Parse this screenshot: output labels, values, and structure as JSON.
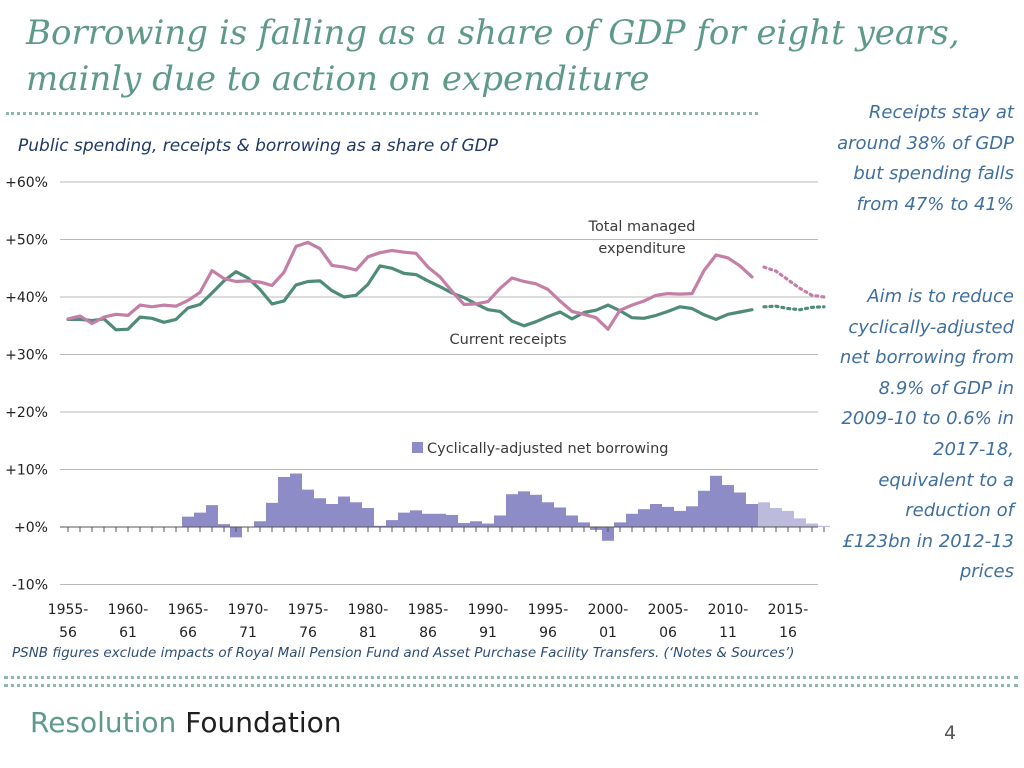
{
  "slide": {
    "title_line1": "Borrowing is falling as a share of GDP for eight years,",
    "title_line2": "mainly due to action on expenditure",
    "page_number": "4"
  },
  "sidebar": {
    "note1": "Receipts stay at around 38% of GDP but spending falls from 47% to 41%",
    "note2": "Aim is to reduce cyclically-adjusted net borrowing from 8.9% of GDP in 2009-10 to 0.6% in 2017-18, equivalent to a reduction of £123bn in 2012-13 prices"
  },
  "footnote": "PSNB figures exclude impacts of Royal Mail Pension  Fund and Asset Purchase Facility Transfers. (‘Notes & Sources’)",
  "brand": {
    "part1": "Resolution",
    "part2": "Foundation"
  },
  "colors": {
    "title": "#5e9a8a",
    "tme": "#c47fa6",
    "receipts": "#4f8c78",
    "borrowing": "#8e8cc6",
    "borrowing_projection": "#bcbbdc",
    "sidebar_text": "#3f6f9f"
  },
  "chart_data": {
    "type": "line",
    "title": "Public spending, receipts & borrowing as a share of GDP",
    "ylim": [
      -10,
      60
    ],
    "yticks": [
      "+60%",
      "+50%",
      "+40%",
      "+30%",
      "+20%",
      "+10%",
      "+0%",
      "-10%"
    ],
    "x_start_year": 1955,
    "categories": [
      "1955-56",
      "1956-57",
      "1957-58",
      "1958-59",
      "1959-60",
      "1960-61",
      "1961-62",
      "1962-63",
      "1963-64",
      "1964-65",
      "1965-66",
      "1966-67",
      "1967-68",
      "1968-69",
      "1969-70",
      "1970-71",
      "1971-72",
      "1972-73",
      "1973-74",
      "1974-75",
      "1975-76",
      "1976-77",
      "1977-78",
      "1978-79",
      "1979-80",
      "1980-81",
      "1981-82",
      "1982-83",
      "1983-84",
      "1984-85",
      "1985-86",
      "1986-87",
      "1987-88",
      "1988-89",
      "1989-90",
      "1990-91",
      "1991-92",
      "1992-93",
      "1993-94",
      "1994-95",
      "1995-96",
      "1996-97",
      "1997-98",
      "1998-99",
      "1999-00",
      "2000-01",
      "2001-02",
      "2002-03",
      "2003-04",
      "2004-05",
      "2005-06",
      "2006-07",
      "2007-08",
      "2008-09",
      "2009-10",
      "2010-11",
      "2011-12",
      "2012-13",
      "2013-14",
      "2014-15",
      "2015-16",
      "2016-17",
      "2017-18",
      "2018-19"
    ],
    "xtick_labels": [
      {
        "top": "1955-",
        "bottom": "56"
      },
      {
        "top": "1960-",
        "bottom": "61"
      },
      {
        "top": "1965-",
        "bottom": "66"
      },
      {
        "top": "1970-",
        "bottom": "71"
      },
      {
        "top": "1975-",
        "bottom": "76"
      },
      {
        "top": "1980-",
        "bottom": "81"
      },
      {
        "top": "1985-",
        "bottom": "86"
      },
      {
        "top": "1990-",
        "bottom": "91"
      },
      {
        "top": "1995-",
        "bottom": "96"
      },
      {
        "top": "2000-",
        "bottom": "01"
      },
      {
        "top": "2005-",
        "bottom": "06"
      },
      {
        "top": "2010-",
        "bottom": "11"
      },
      {
        "top": "2015-",
        "bottom": "16"
      }
    ],
    "projection_start_index": 58,
    "series": [
      {
        "name": "Total managed expenditure",
        "label_line1": "Total managed",
        "label_line2": "expenditure",
        "values": [
          36.2,
          36.7,
          35.4,
          36.5,
          37.0,
          36.8,
          38.6,
          38.3,
          38.6,
          38.4,
          39.4,
          40.8,
          44.6,
          43.2,
          42.7,
          42.8,
          42.6,
          42.0,
          44.3,
          48.8,
          49.5,
          48.4,
          45.5,
          45.2,
          44.7,
          47.0,
          47.7,
          48.1,
          47.8,
          47.6,
          45.2,
          43.5,
          41.0,
          38.7,
          38.8,
          39.2,
          41.5,
          43.3,
          42.7,
          42.3,
          41.3,
          39.3,
          37.5,
          37.0,
          36.4,
          34.4,
          37.7,
          38.6,
          39.3,
          40.3,
          40.6,
          40.5,
          40.6,
          44.6,
          47.3,
          46.8,
          45.4,
          43.5,
          45.2,
          44.5,
          43.0,
          41.5,
          40.3,
          40.0
        ]
      },
      {
        "name": "Current receipts",
        "label": "Current receipts",
        "values": [
          36.1,
          36.1,
          35.9,
          36.2,
          34.3,
          34.4,
          36.5,
          36.3,
          35.6,
          36.1,
          38.1,
          38.7,
          40.7,
          42.8,
          44.4,
          43.3,
          41.3,
          38.8,
          39.3,
          42.1,
          42.7,
          42.8,
          41.1,
          40.0,
          40.3,
          42.2,
          45.4,
          45.0,
          44.1,
          43.9,
          42.8,
          41.8,
          40.7,
          39.9,
          38.8,
          37.8,
          37.5,
          35.8,
          35.0,
          35.7,
          36.6,
          37.4,
          36.2,
          37.3,
          37.7,
          38.6,
          37.6,
          36.4,
          36.3,
          36.8,
          37.5,
          38.3,
          38.0,
          36.9,
          36.1,
          37.0,
          37.4,
          37.8,
          38.3,
          38.4,
          38.0,
          37.8,
          38.2,
          38.3
        ]
      },
      {
        "name": "Cyclically-adjusted net borrowing",
        "label": "Cyclically-adjusted net borrowing",
        "type": "bar",
        "values": [
          0,
          0,
          0,
          0,
          0,
          0,
          0,
          0,
          0,
          0,
          1.8,
          2.5,
          3.8,
          0.5,
          -1.8,
          0.0,
          1.0,
          4.2,
          8.7,
          9.3,
          6.5,
          5.0,
          4.0,
          5.3,
          4.3,
          3.3,
          0.2,
          1.2,
          2.5,
          2.9,
          2.3,
          2.3,
          2.1,
          0.7,
          1.0,
          0.6,
          2.0,
          5.7,
          6.2,
          5.6,
          4.3,
          3.4,
          2.0,
          0.8,
          -0.5,
          -2.4,
          0.8,
          2.3,
          3.1,
          4.0,
          3.5,
          2.8,
          3.6,
          6.3,
          8.9,
          7.3,
          6.0,
          4.0,
          4.3,
          3.3,
          2.8,
          1.5,
          0.6,
          0.2
        ]
      }
    ]
  }
}
